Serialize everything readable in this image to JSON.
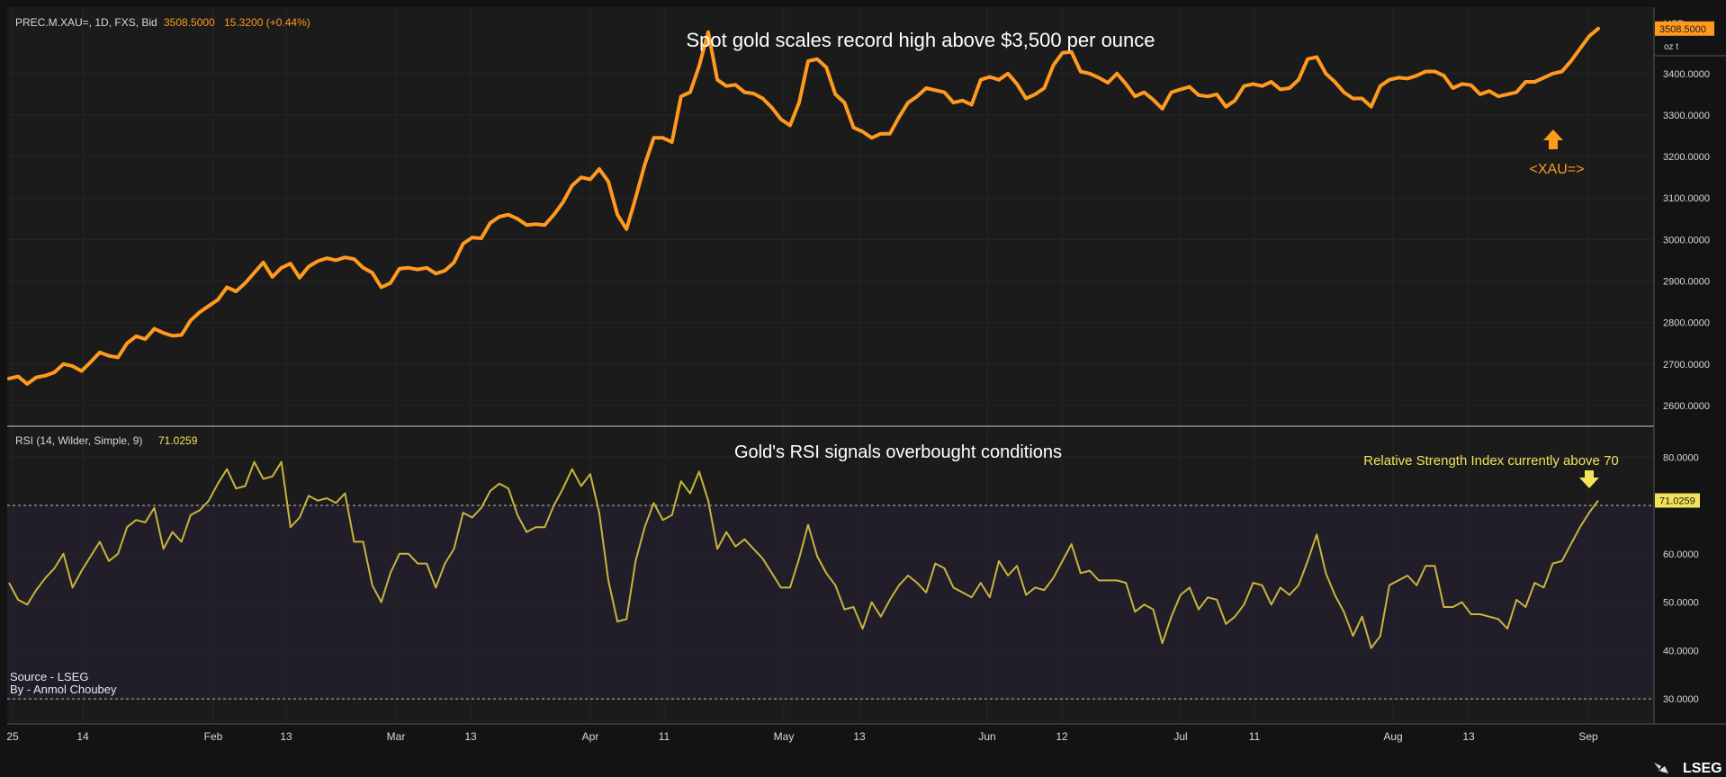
{
  "header": {
    "instrument": "PREC.M.XAU=, 1D, FXS, Bid",
    "last_value": "3508.5000",
    "change": "15.3200 (+0.44%)"
  },
  "currency": {
    "unit": "USD",
    "measure": "oz t"
  },
  "price_panel": {
    "title": "Spot gold scales record high above $3,500 per ounce",
    "last_label": "3508.5000",
    "marker_label": "<XAU=>"
  },
  "rsi_panel": {
    "header_label": "RSI (14, Wilder, Simple, 9)",
    "header_value": "71.0259",
    "title": "Gold's RSI signals overbought conditions",
    "annotation": "Relative Strength Index currently above 70",
    "last_label": "71.0259"
  },
  "credits": {
    "source": "Source - LSEG",
    "author": "By - Anmol Choubey"
  },
  "logo": {
    "text": "LSEG"
  },
  "colors": {
    "background": "#131313",
    "panel": "#1b1b1b",
    "grid": "#2a2a2a",
    "price_line": "#ff9a1f",
    "rsi_line": "#c8b43c",
    "rsi_zone": "#211e2a",
    "text": "#d8d8d8",
    "rsi_value": "#f2e35a"
  },
  "chart_data": [
    {
      "type": "line",
      "title": "Spot gold scales record high above $3,500 per ounce",
      "ylim": [
        2550,
        3560
      ],
      "yticks": [
        "2600.0000",
        "2700.0000",
        "2800.0000",
        "2900.0000",
        "3000.0000",
        "3100.0000",
        "3200.0000",
        "3300.0000",
        "3400.0000"
      ],
      "xticks": [
        "25",
        "14",
        "Feb",
        "13",
        "Mar",
        "13",
        "Apr",
        "11",
        "May",
        "13",
        "Jun",
        "12",
        "Jul",
        "11",
        "Aug",
        "13",
        "Sep"
      ],
      "series": [
        {
          "values": [
            2665,
            2670,
            2652,
            2668,
            2672,
            2680,
            2700,
            2695,
            2683,
            2705,
            2728,
            2720,
            2716,
            2750,
            2767,
            2760,
            2785,
            2775,
            2768,
            2770,
            2805,
            2825,
            2840,
            2855,
            2885,
            2875,
            2895,
            2920,
            2945,
            2910,
            2932,
            2942,
            2908,
            2935,
            2948,
            2955,
            2950,
            2957,
            2953,
            2932,
            2920,
            2885,
            2895,
            2930,
            2932,
            2928,
            2932,
            2918,
            2925,
            2945,
            2990,
            3005,
            3003,
            3040,
            3055,
            3060,
            3050,
            3035,
            3037,
            3035,
            3060,
            3090,
            3130,
            3150,
            3145,
            3170,
            3140,
            3060,
            3025,
            3100,
            3180,
            3245,
            3245,
            3235,
            3345,
            3355,
            3418,
            3500,
            3385,
            3370,
            3373,
            3355,
            3352,
            3340,
            3318,
            3290,
            3275,
            3330,
            3430,
            3435,
            3415,
            3350,
            3330,
            3270,
            3260,
            3245,
            3255,
            3255,
            3295,
            3330,
            3345,
            3365,
            3360,
            3355,
            3330,
            3335,
            3325,
            3385,
            3392,
            3385,
            3400,
            3375,
            3340,
            3350,
            3365,
            3420,
            3450,
            3452,
            3405,
            3400,
            3390,
            3378,
            3400,
            3375,
            3345,
            3355,
            3337,
            3315,
            3355,
            3362,
            3368,
            3348,
            3345,
            3350,
            3320,
            3335,
            3370,
            3375,
            3370,
            3380,
            3362,
            3365,
            3385,
            3435,
            3440,
            3400,
            3380,
            3355,
            3340,
            3340,
            3320,
            3370,
            3385,
            3390,
            3388,
            3395,
            3405,
            3405,
            3395,
            3365,
            3375,
            3372,
            3350,
            3358,
            3345,
            3350,
            3355,
            3380,
            3380,
            3390,
            3400,
            3405,
            3430,
            3460,
            3490,
            3508.5
          ]
        }
      ]
    },
    {
      "type": "line",
      "title": "Gold's RSI signals overbought conditions",
      "ylim": [
        25,
        86
      ],
      "yticks": [
        "30.0000",
        "40.0000",
        "50.0000",
        "60.0000",
        "70.0000",
        "80.0000"
      ],
      "reference_lines": [
        70,
        30
      ],
      "series": [
        {
          "values": [
            54,
            50.5,
            49.5,
            52.5,
            55,
            57,
            60,
            53,
            56.5,
            59.5,
            62.5,
            58.5,
            60,
            65.5,
            67,
            66.5,
            69.5,
            61,
            64.5,
            62.5,
            68,
            69,
            71,
            74.5,
            77.5,
            73.5,
            74,
            79,
            75.5,
            76,
            79,
            65.5,
            67.5,
            72,
            71,
            71.5,
            70.5,
            72.5,
            62.5,
            62.5,
            53.5,
            50,
            56,
            60,
            60,
            58,
            58,
            53,
            58,
            61,
            68.5,
            67.5,
            69.5,
            73,
            74.5,
            73.5,
            68,
            64.5,
            65.5,
            65.5,
            70,
            73.5,
            77.5,
            74,
            76.5,
            68.5,
            54.5,
            46,
            46.5,
            58.5,
            65.5,
            70.5,
            67,
            68,
            75,
            72.5,
            77,
            71,
            61,
            64.5,
            61.5,
            63,
            61,
            59,
            56,
            53,
            53,
            59,
            66,
            59.5,
            56,
            53.5,
            48.5,
            49,
            44.5,
            50,
            47,
            50.5,
            53.5,
            55.5,
            54,
            52,
            58,
            57,
            53,
            52,
            51,
            54,
            51,
            58.5,
            55.5,
            57.5,
            51.5,
            53,
            52.5,
            55,
            58.5,
            62,
            56,
            56.5,
            54.5,
            54.5,
            54.5,
            54,
            48,
            49.5,
            48.5,
            41.5,
            47,
            51.5,
            53,
            48.5,
            51,
            50.5,
            45.5,
            47,
            49.5,
            54,
            53.5,
            49.5,
            53,
            51.5,
            53.5,
            58.5,
            64,
            56,
            51.5,
            48,
            43,
            47,
            40.5,
            43,
            53.5,
            54.5,
            55.5,
            53.5,
            57.5,
            57.5,
            49,
            49,
            50,
            47.5,
            47.5,
            47,
            46.5,
            44.5,
            50.5,
            49,
            54,
            53,
            58,
            58.5,
            62,
            65.5,
            68.5,
            71.03
          ]
        }
      ]
    }
  ]
}
